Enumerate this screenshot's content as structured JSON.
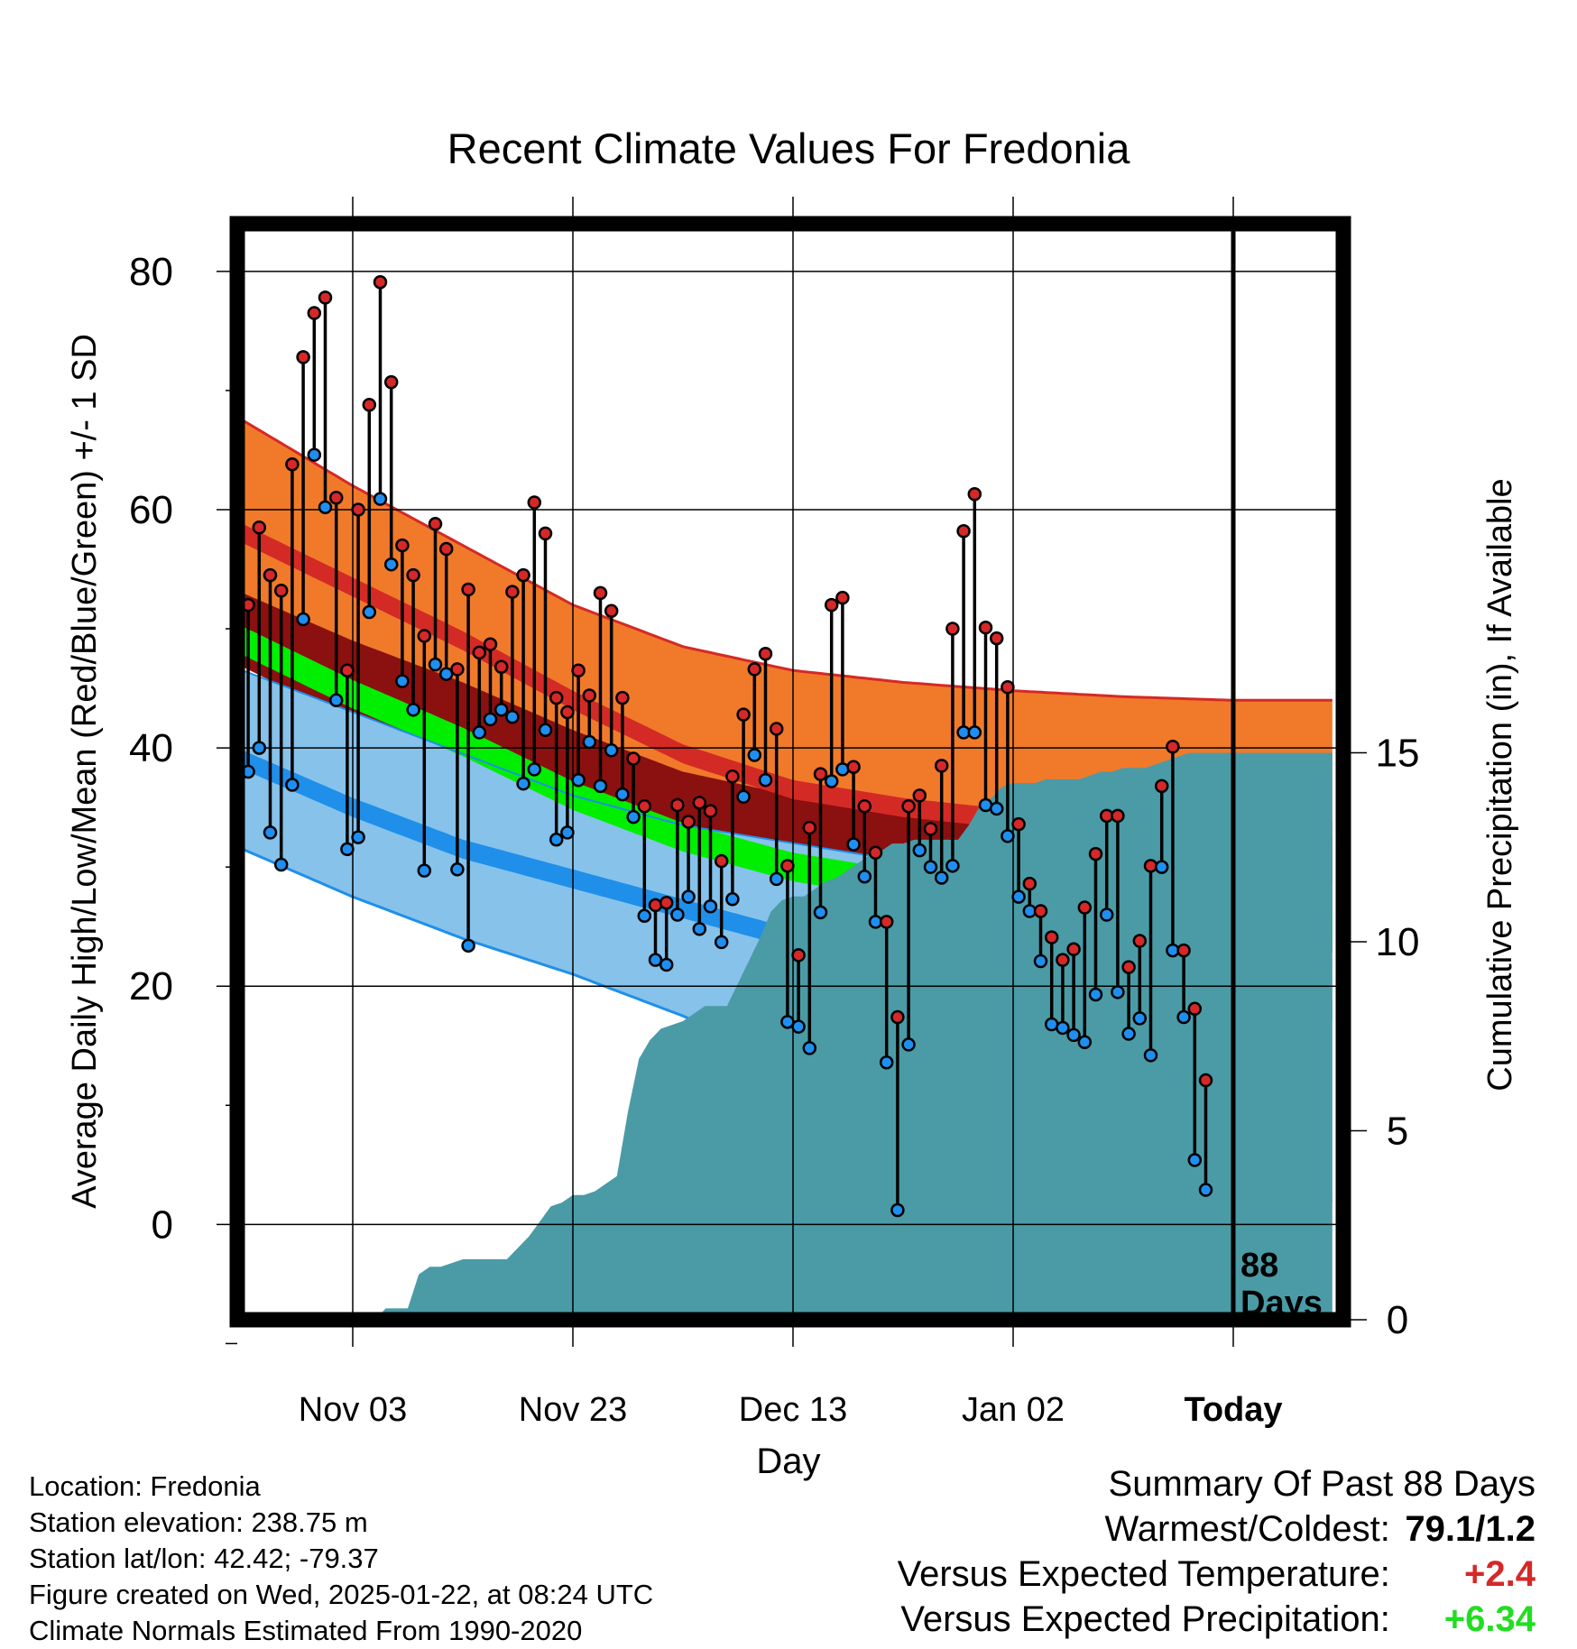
{
  "chart_data": {
    "type": "climate-range",
    "title": "Recent Climate Values For Fredonia",
    "xlabel": "Day",
    "ylabel_left": "Average Daily High/Low/Mean (Red/Blue/Green) +/- 1 SD",
    "ylabel_right": "Cumulative Precipitation (in), If Available",
    "ylim_left": [
      -8,
      84
    ],
    "ylim_right": [
      0,
      29
    ],
    "yticks_left": [
      0,
      20,
      40,
      60,
      80
    ],
    "yticks_right": [
      0,
      5,
      10,
      15
    ],
    "x_range_days": [
      0,
      99
    ],
    "x_ticks": [
      {
        "day": 10,
        "label": "Nov 03"
      },
      {
        "day": 30,
        "label": "Nov 23"
      },
      {
        "day": 50,
        "label": "Dec 13"
      },
      {
        "day": 70,
        "label": "Jan 02"
      },
      {
        "day": 90,
        "label": "Today"
      }
    ],
    "today_day": 90,
    "days_label": "88",
    "days_word": "Days",
    "normals": {
      "days": [
        0,
        10,
        20,
        30,
        40,
        50,
        60,
        70,
        80,
        90,
        99
      ],
      "high_plus_sd": [
        67.5,
        62,
        57,
        52,
        48.5,
        46.5,
        45.5,
        44.8,
        44.3,
        44,
        44
      ],
      "high_mean": [
        58,
        53.5,
        49,
        44,
        39.5,
        36.5,
        35,
        34,
        33.2,
        33,
        33
      ],
      "high_minus_sd": [
        49,
        45,
        41.5,
        37.5,
        34,
        32,
        30.5,
        29.5,
        28.8,
        28.5,
        28.5
      ],
      "mean": [
        49,
        44.5,
        40.5,
        36,
        32.5,
        30,
        28.5,
        27,
        25.8,
        25,
        25
      ],
      "low_plus_sd": [
        46.5,
        43,
        39.5,
        36,
        33.5,
        32,
        30.5,
        29.5,
        28.8,
        28.5,
        28.5
      ],
      "low_mean": [
        39,
        35,
        31.5,
        29,
        26.5,
        24,
        22,
        20,
        18.5,
        18,
        18
      ],
      "low_minus_sd": [
        31.5,
        27.5,
        24,
        21,
        17.5,
        13.5,
        9,
        5.5,
        3,
        2,
        2
      ],
      "low_band_top_display": [
        46.5,
        43,
        39.5,
        36,
        33.5,
        32,
        30.5,
        29.5,
        27,
        22.5,
        22.2
      ],
      "mean_band_sd": 1.6,
      "high_low_band_sd": 1.6
    },
    "daily": {
      "high": [
        52,
        58.5,
        54.5,
        53.2,
        63.8,
        72.8,
        76.5,
        77.8,
        61,
        46.5,
        60,
        68.8,
        79.1,
        70.7,
        57,
        54.5,
        49.4,
        58.8,
        56.7,
        46.6,
        53.3,
        48,
        48.7,
        46.8,
        53.1,
        54.5,
        60.6,
        58,
        44.2,
        43,
        46.5,
        44.4,
        53,
        51.5,
        44.2,
        39.1,
        35.1,
        26.8,
        27,
        35.2,
        33.8,
        35.4,
        34.7,
        30.5,
        37.6,
        42.8,
        46.6,
        47.9,
        41.6,
        30.1,
        22.6,
        33.3,
        37.8,
        52,
        52.6,
        38.4,
        35.1,
        31.2,
        25.4,
        17.4,
        35.1,
        36,
        33.2,
        38.5,
        50,
        58.2,
        61.3,
        50.1,
        49.2,
        45.1,
        33.6,
        28.6,
        26.3,
        24.1,
        22.2,
        23.1,
        26.6,
        31.1,
        34.3,
        34.3,
        21.6,
        23.8,
        30.1,
        36.8,
        40.1,
        23,
        18.1,
        12.1
      ],
      "low": [
        38,
        40,
        32.9,
        30.2,
        36.9,
        50.8,
        64.6,
        60.2,
        44,
        31.5,
        32.5,
        51.4,
        60.9,
        55.4,
        45.6,
        43.2,
        29.7,
        47,
        46.2,
        29.8,
        23.4,
        41.3,
        42.4,
        43.2,
        42.6,
        37,
        38.2,
        41.5,
        32.3,
        32.9,
        37.3,
        40.5,
        36.8,
        39.8,
        36.1,
        34.2,
        25.9,
        22.2,
        21.8,
        26,
        27.5,
        24.8,
        26.7,
        23.7,
        27.3,
        35.9,
        39.4,
        37.3,
        29,
        17,
        16.6,
        14.8,
        26.2,
        37.2,
        38.2,
        31.9,
        29.2,
        25.4,
        13.6,
        1.2,
        15.1,
        31.4,
        30,
        29.1,
        30.1,
        41.3,
        41.3,
        35.2,
        34.9,
        32.6,
        27.5,
        26.3,
        22.1,
        16.8,
        16.5,
        15.9,
        15.3,
        19.3,
        26,
        19.5,
        16,
        17.3,
        14.2,
        30,
        23,
        17.4,
        5.4,
        2.9
      ]
    },
    "precip_cumulative": {
      "days": [
        0,
        12,
        13,
        15,
        16,
        17,
        18,
        20,
        22,
        24,
        26,
        27,
        28,
        29,
        30,
        31,
        32,
        34,
        35,
        36,
        37,
        38,
        40,
        42,
        44,
        45,
        46,
        47,
        48,
        49,
        50,
        51,
        52,
        53,
        54,
        55,
        56,
        57,
        58,
        59,
        60,
        61,
        62,
        63,
        64,
        65,
        66,
        67,
        68,
        69,
        70,
        71,
        72,
        73,
        74,
        75,
        76,
        77,
        78,
        79,
        80,
        81,
        82,
        83,
        84,
        85,
        86,
        87,
        88,
        89,
        90,
        99
      ],
      "values": [
        0,
        0,
        0.3,
        0.3,
        1.2,
        1.4,
        1.4,
        1.6,
        1.6,
        1.6,
        2.2,
        2.6,
        3,
        3.1,
        3.3,
        3.3,
        3.4,
        3.8,
        5.5,
        6.9,
        7.4,
        7.7,
        7.9,
        8.3,
        8.3,
        8.9,
        9.5,
        10.1,
        10.8,
        11.1,
        11.2,
        11.2,
        11.4,
        11.6,
        11.7,
        11.9,
        12.1,
        12.3,
        12.4,
        12.6,
        12.6,
        12.7,
        12.7,
        12.7,
        12.7,
        12.7,
        13.1,
        13.6,
        13.8,
        14.1,
        14.2,
        14.2,
        14.2,
        14.3,
        14.3,
        14.3,
        14.3,
        14.4,
        14.5,
        14.5,
        14.6,
        14.6,
        14.6,
        14.7,
        14.8,
        14.9,
        15,
        15,
        15,
        15,
        15,
        15
      ]
    }
  },
  "location": {
    "location_line": "Location: Fredonia",
    "elevation_line": "Station elevation: 238.75 m",
    "latlon_line": "Station lat/lon: 42.42; -79.37",
    "created_line": "Figure created on Wed, 2025-01-22, at 08:24 UTC",
    "normals_line": "Climate Normals Estimated From 1990-2020"
  },
  "summary": {
    "title": "Summary Of Past 88 Days",
    "warm_cold_label": "Warmest/Coldest:",
    "warm_cold_value": "79.1/1.2",
    "temp_label": "Versus Expected Temperature:",
    "temp_value": "+2.4",
    "precip_label": "Versus Expected Precipitation:",
    "precip_value": "+6.34"
  },
  "colors": {
    "high_band": "#f07a2a",
    "high_line": "#d42a26",
    "high_sd_dark": "#8b1010",
    "mean_band": "#00ee00",
    "low_band": "#86c2ea",
    "low_line": "#1f8fea",
    "precip": "#4a9ba6",
    "high_dot": "#d62828",
    "low_dot": "#1e8ff0",
    "temp_value": "#d62828",
    "precip_value": "#22dd22"
  }
}
